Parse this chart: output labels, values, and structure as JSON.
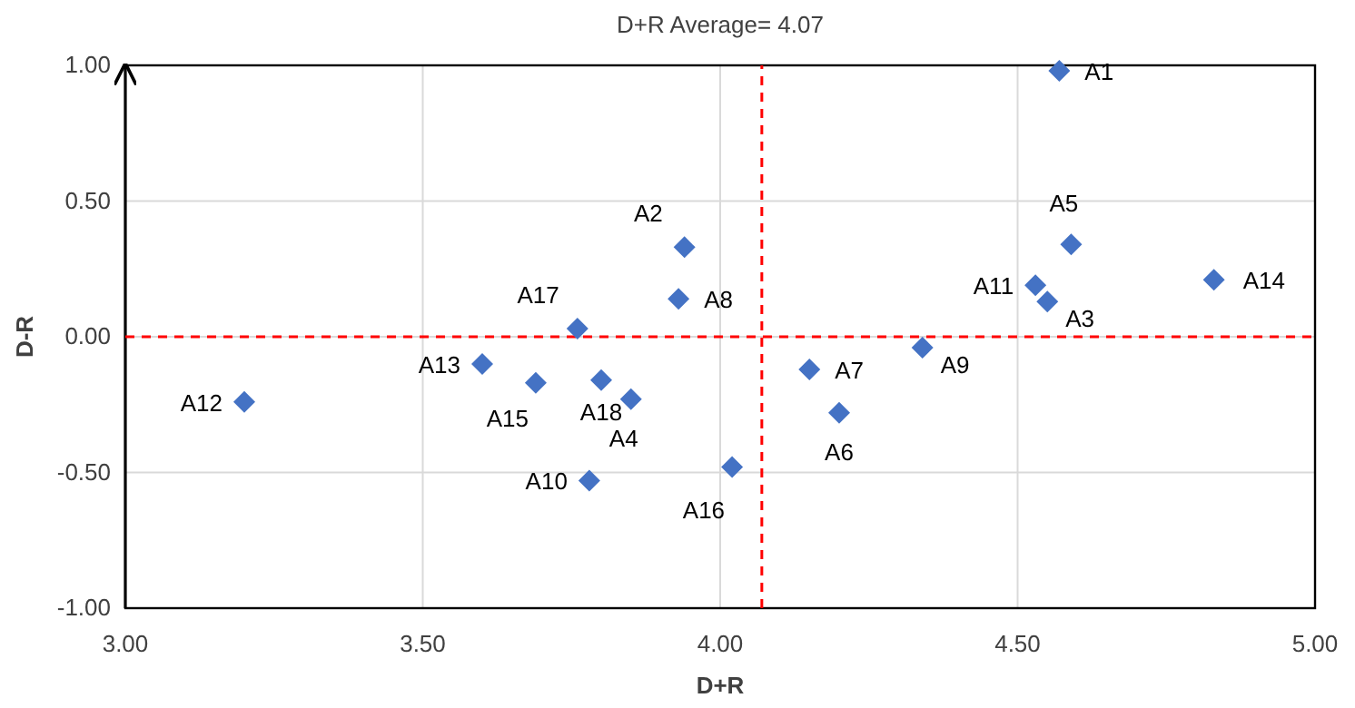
{
  "chart_data": {
    "type": "scatter",
    "title": "D+R Average= 4.07",
    "xlabel": "D+R",
    "ylabel": "D-R",
    "x": [
      4.57,
      3.94,
      4.55,
      3.85,
      4.59,
      4.2,
      4.15,
      3.93,
      4.34,
      3.78,
      4.53,
      3.2,
      3.6,
      4.83,
      3.69,
      4.02,
      3.76,
      3.8
    ],
    "series": [
      {
        "color": "#4472c4",
        "values": [
          0.98,
          0.33,
          0.13,
          -0.23,
          0.34,
          -0.28,
          -0.12,
          0.14,
          -0.04,
          -0.53,
          0.19,
          -0.24,
          -0.1,
          0.21,
          -0.17,
          -0.48,
          0.03,
          -0.16
        ]
      }
    ],
    "annotations": [
      {
        "text": "A1",
        "x": 4.57,
        "y": 0.98
      },
      {
        "text": "A2",
        "x": 3.94,
        "y": 0.33
      },
      {
        "text": "A3",
        "x": 4.55,
        "y": 0.13
      },
      {
        "text": "A4",
        "x": 3.85,
        "y": -0.23
      },
      {
        "text": "A5",
        "x": 4.59,
        "y": 0.34
      },
      {
        "text": "A6",
        "x": 4.2,
        "y": -0.28
      },
      {
        "text": "A7",
        "x": 4.15,
        "y": -0.12
      },
      {
        "text": "A8",
        "x": 3.93,
        "y": 0.14
      },
      {
        "text": "A9",
        "x": 4.34,
        "y": -0.04
      },
      {
        "text": "A10",
        "x": 3.78,
        "y": -0.53
      },
      {
        "text": "A11",
        "x": 4.53,
        "y": 0.19
      },
      {
        "text": "A12",
        "x": 3.2,
        "y": -0.24
      },
      {
        "text": "A13",
        "x": 3.6,
        "y": -0.1
      },
      {
        "text": "A14",
        "x": 4.83,
        "y": 0.21
      },
      {
        "text": "A15",
        "x": 3.69,
        "y": -0.17
      },
      {
        "text": "A16",
        "x": 4.02,
        "y": -0.48
      },
      {
        "text": "A17",
        "x": 3.76,
        "y": 0.03
      },
      {
        "text": "A18",
        "x": 3.8,
        "y": -0.16
      }
    ],
    "xlim": [
      3,
      5
    ],
    "xticks": [
      {
        "value": 3,
        "label": "3.00"
      },
      {
        "value": 3.5,
        "label": "3.50"
      },
      {
        "value": 4,
        "label": "4.00"
      },
      {
        "value": 4.5,
        "label": "4.50"
      },
      {
        "value": 5,
        "label": "5.00"
      }
    ],
    "ylim": [
      -1,
      1
    ],
    "yticks": [
      {
        "value": -1,
        "label": "-1.00"
      },
      {
        "value": -0.5,
        "label": "-0.50"
      },
      {
        "value": 0,
        "label": "0.00"
      },
      {
        "value": 0.5,
        "label": "0.50"
      },
      {
        "value": 1,
        "label": "1.00"
      }
    ],
    "ref_lines": [
      {
        "axis": "x",
        "value": 4.07,
        "color": "#ff0000",
        "line_style": "dashed"
      },
      {
        "axis": "y",
        "value": 0,
        "color": "#ff0000",
        "line_style": "dashed"
      }
    ],
    "grid": true,
    "marker": "diamond"
  }
}
